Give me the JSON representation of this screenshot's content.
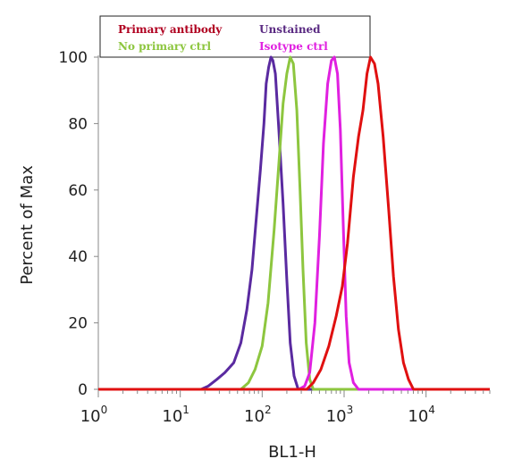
{
  "chart_data": {
    "type": "line",
    "xlabel": "BL1-H",
    "ylabel": "Percent of Max",
    "x_scale": "log",
    "xlim": [
      1,
      60000
    ],
    "ylim": [
      0,
      100
    ],
    "x_ticks": [
      {
        "value": 1,
        "base": "10",
        "exp": "0"
      },
      {
        "value": 10,
        "base": "10",
        "exp": "1"
      },
      {
        "value": 100,
        "base": "10",
        "exp": "2"
      },
      {
        "value": 1000,
        "base": "10",
        "exp": "3"
      },
      {
        "value": 10000,
        "base": "10",
        "exp": "4"
      }
    ],
    "y_ticks": [
      0,
      20,
      40,
      60,
      80,
      100
    ],
    "legend": {
      "placement": "top",
      "entries": [
        {
          "label": "Primary antibody",
          "color": "#b00020"
        },
        {
          "label": "Unstained",
          "color": "#5a2a82"
        },
        {
          "label": "No primary ctrl",
          "color": "#8dc63f"
        },
        {
          "label": "Isotype ctrl",
          "color": "#e020e0"
        }
      ]
    },
    "series": [
      {
        "name": "Unstained",
        "color": "#5a2aa0",
        "points": [
          [
            1,
            0
          ],
          [
            18,
            0
          ],
          [
            22,
            1
          ],
          [
            28,
            3
          ],
          [
            35,
            5
          ],
          [
            45,
            8
          ],
          [
            55,
            14
          ],
          [
            65,
            24
          ],
          [
            75,
            36
          ],
          [
            85,
            52
          ],
          [
            95,
            66
          ],
          [
            105,
            80
          ],
          [
            112,
            92
          ],
          [
            120,
            97
          ],
          [
            128,
            100
          ],
          [
            135,
            99
          ],
          [
            145,
            95
          ],
          [
            160,
            78
          ],
          [
            180,
            56
          ],
          [
            200,
            33
          ],
          [
            220,
            14
          ],
          [
            245,
            4
          ],
          [
            275,
            0
          ],
          [
            60000,
            0
          ]
        ]
      },
      {
        "name": "No primary ctrl",
        "color": "#8dc63f",
        "points": [
          [
            1,
            0
          ],
          [
            55,
            0
          ],
          [
            68,
            2
          ],
          [
            82,
            6
          ],
          [
            100,
            13
          ],
          [
            118,
            26
          ],
          [
            140,
            48
          ],
          [
            160,
            68
          ],
          [
            180,
            86
          ],
          [
            200,
            95
          ],
          [
            220,
            100
          ],
          [
            240,
            98
          ],
          [
            265,
            84
          ],
          [
            290,
            60
          ],
          [
            315,
            36
          ],
          [
            345,
            14
          ],
          [
            380,
            3
          ],
          [
            420,
            0
          ],
          [
            60000,
            0
          ]
        ]
      },
      {
        "name": "Isotype ctrl",
        "color": "#e020e0",
        "points": [
          [
            1,
            0
          ],
          [
            280,
            0
          ],
          [
            330,
            1
          ],
          [
            380,
            5
          ],
          [
            440,
            20
          ],
          [
            500,
            46
          ],
          [
            560,
            74
          ],
          [
            630,
            92
          ],
          [
            700,
            99
          ],
          [
            760,
            100
          ],
          [
            830,
            95
          ],
          [
            900,
            78
          ],
          [
            980,
            48
          ],
          [
            1060,
            22
          ],
          [
            1150,
            8
          ],
          [
            1300,
            2
          ],
          [
            1500,
            0
          ],
          [
            60000,
            0
          ]
        ]
      },
      {
        "name": "Primary antibody",
        "color": "#e01010",
        "points": [
          [
            1,
            0
          ],
          [
            350,
            0
          ],
          [
            420,
            2
          ],
          [
            520,
            6
          ],
          [
            650,
            13
          ],
          [
            800,
            22
          ],
          [
            950,
            31
          ],
          [
            1100,
            44
          ],
          [
            1300,
            64
          ],
          [
            1500,
            76
          ],
          [
            1700,
            84
          ],
          [
            1900,
            95
          ],
          [
            2100,
            100
          ],
          [
            2350,
            98
          ],
          [
            2600,
            92
          ],
          [
            3000,
            76
          ],
          [
            3500,
            54
          ],
          [
            4000,
            34
          ],
          [
            4600,
            18
          ],
          [
            5300,
            8
          ],
          [
            6100,
            3
          ],
          [
            7000,
            0
          ],
          [
            60000,
            0
          ]
        ]
      }
    ]
  }
}
